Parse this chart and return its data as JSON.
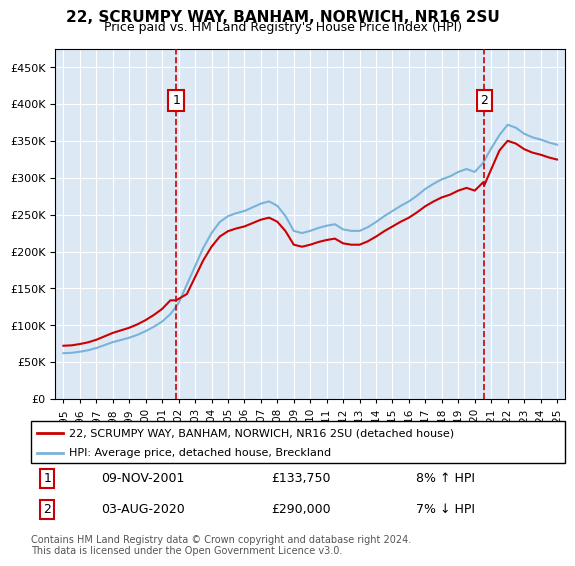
{
  "title": "22, SCRUMPY WAY, BANHAM, NORWICH, NR16 2SU",
  "subtitle": "Price paid vs. HM Land Registry's House Price Index (HPI)",
  "background_color": "#dce9f5",
  "plot_bg_color": "#dce9f5",
  "ylabel_color": "#222222",
  "legend_line1": "22, SCRUMPY WAY, BANHAM, NORWICH, NR16 2SU (detached house)",
  "legend_line2": "HPI: Average price, detached house, Breckland",
  "sale1_date": "09-NOV-2001",
  "sale1_price": 133750,
  "sale1_label": "8% ↑ HPI",
  "sale2_date": "03-AUG-2020",
  "sale2_price": 290000,
  "sale2_label": "7% ↓ HPI",
  "footer": "Contains HM Land Registry data © Crown copyright and database right 2024.\nThis data is licensed under the Open Government Licence v3.0.",
  "hpi_color": "#7ab3d9",
  "price_color": "#cc0000",
  "vline_color": "#cc0000",
  "marker1_x": 2001.85,
  "marker2_x": 2020.58,
  "ylim_min": 0,
  "ylim_max": 475000,
  "xlim_min": 1994.5,
  "xlim_max": 2025.5,
  "yticks": [
    0,
    50000,
    100000,
    150000,
    200000,
    250000,
    300000,
    350000,
    400000,
    450000
  ],
  "xticks": [
    1995,
    1996,
    1997,
    1998,
    1999,
    2000,
    2001,
    2002,
    2003,
    2004,
    2005,
    2006,
    2007,
    2008,
    2009,
    2010,
    2011,
    2012,
    2013,
    2014,
    2015,
    2016,
    2017,
    2018,
    2019,
    2020,
    2021,
    2022,
    2023,
    2024,
    2025
  ]
}
